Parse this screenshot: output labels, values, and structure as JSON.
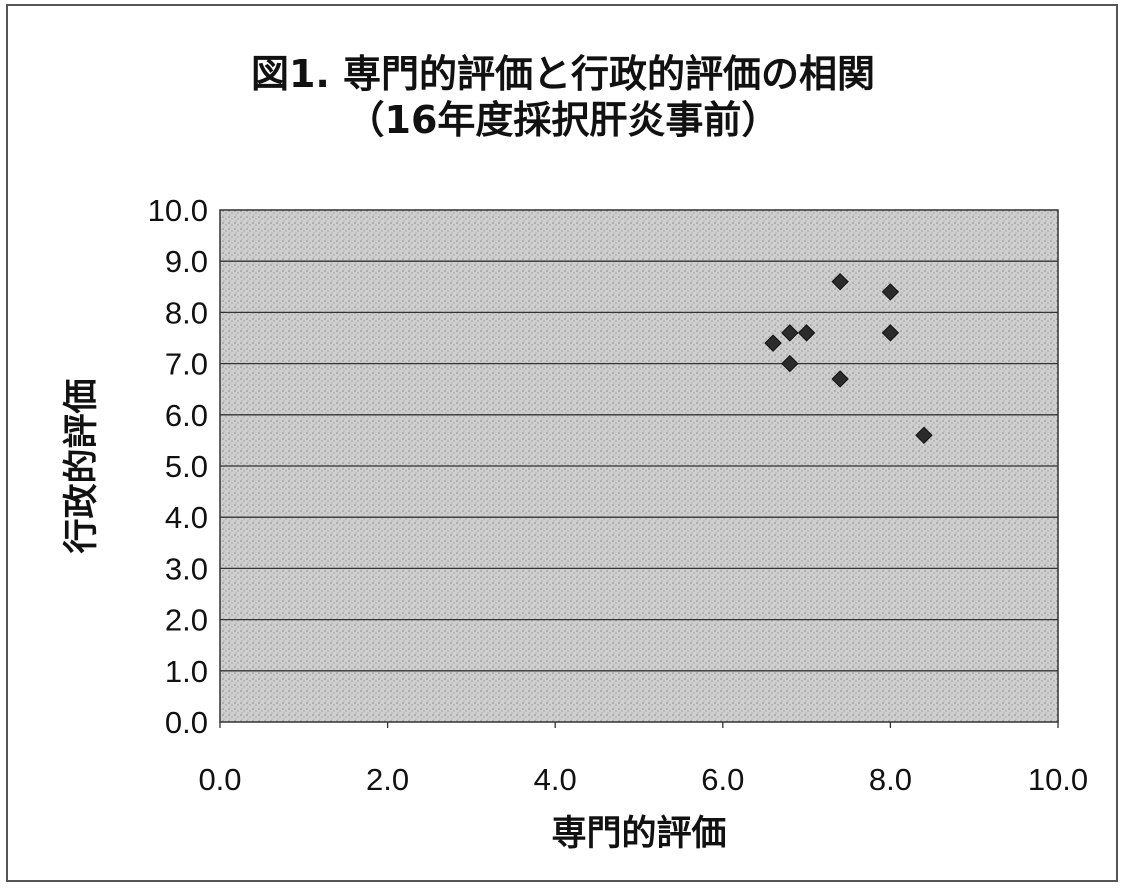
{
  "chart_data": {
    "type": "scatter",
    "title": "図1. 専門的評価と行政的評価の相関",
    "subtitle": "（16年度採択肝炎事前）",
    "xlabel": "専門的評価",
    "ylabel": "行政的評価",
    "xlim": [
      0,
      10
    ],
    "ylim": [
      0,
      10
    ],
    "x_ticks": [
      "0.0",
      "2.0",
      "4.0",
      "6.0",
      "8.0",
      "10.0"
    ],
    "y_ticks": [
      "0.0",
      "1.0",
      "2.0",
      "3.0",
      "4.0",
      "5.0",
      "6.0",
      "7.0",
      "8.0",
      "9.0",
      "10.0"
    ],
    "grid": "horizontal",
    "legend": "none",
    "marker_color": "#2b2b2b",
    "series": [
      {
        "points": [
          {
            "x": 6.6,
            "y": 7.4
          },
          {
            "x": 6.8,
            "y": 7.6
          },
          {
            "x": 6.8,
            "y": 7.0
          },
          {
            "x": 7.0,
            "y": 7.6
          },
          {
            "x": 7.4,
            "y": 8.6
          },
          {
            "x": 7.4,
            "y": 6.7
          },
          {
            "x": 8.0,
            "y": 8.4
          },
          {
            "x": 8.0,
            "y": 7.6
          },
          {
            "x": 8.4,
            "y": 5.6
          }
        ]
      }
    ]
  }
}
